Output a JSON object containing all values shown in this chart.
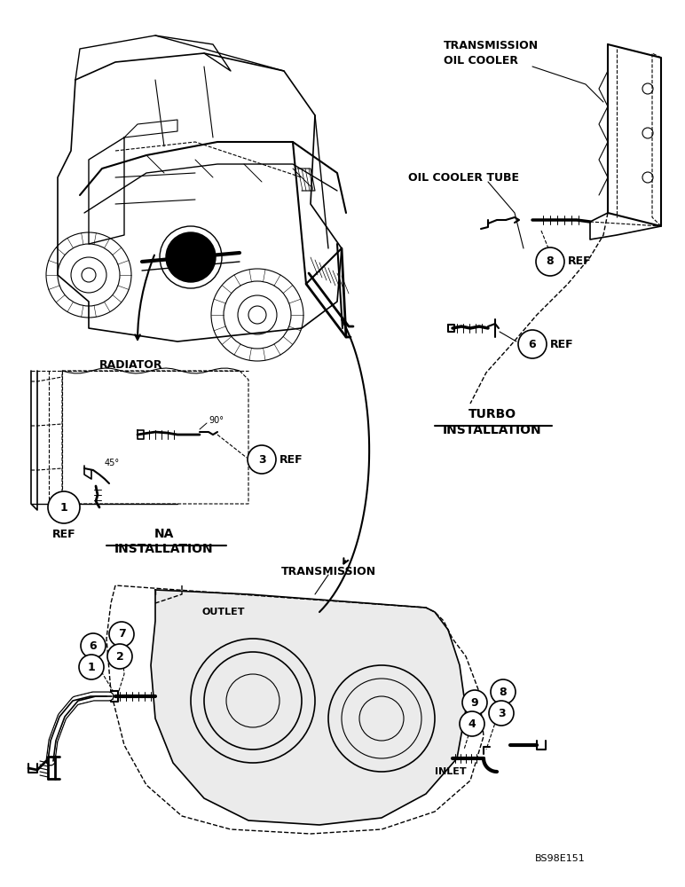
{
  "bg_color": "#ffffff",
  "page_code": "BS98E151",
  "labels": {
    "transmission_oil_cooler": "TRANSMISSION\nOIL COOLER",
    "oil_cooler_tube": "OIL COOLER TUBE",
    "turbo_installation_line1": "TURBO",
    "turbo_installation_line2": "INSTALLATION",
    "radiator": "RADIATOR",
    "na_installation_line1": "NA",
    "na_installation_line2": "INSTALLATION",
    "transmission": "TRANSMISSION",
    "outlet": "OUTLET",
    "inlet": "INLET"
  },
  "figsize": [
    7.72,
    10.0
  ],
  "dpi": 100,
  "xlim": [
    0,
    772
  ],
  "ylim": [
    0,
    1000
  ]
}
